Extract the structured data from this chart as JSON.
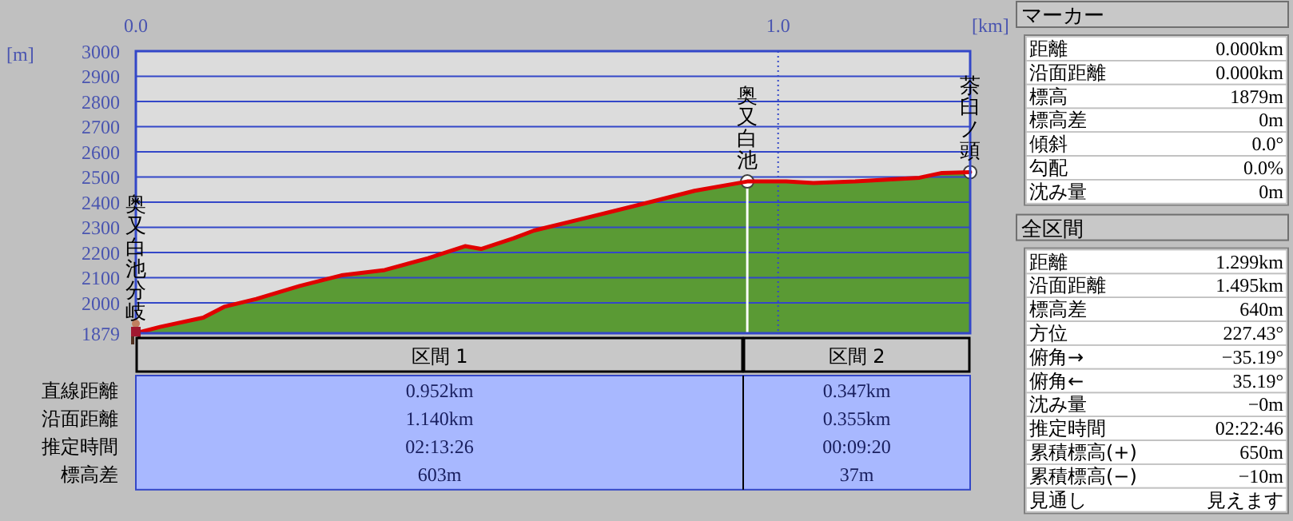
{
  "chart_data": [
    {
      "type": "area",
      "xlabel": "[km]",
      "ylabel": "[m]",
      "xlim": [
        0,
        1.299
      ],
      "xticks": [
        {
          "value": 0,
          "label": "0.0"
        },
        {
          "value": 1,
          "label": "1.0"
        }
      ],
      "ylim": [
        1879,
        3000
      ],
      "yticks": [
        1879,
        2000,
        2100,
        2200,
        2300,
        2400,
        2500,
        2600,
        2700,
        2800,
        2900,
        3000
      ],
      "grid": "y",
      "x": [
        0,
        0.0375,
        0.105,
        0.1375,
        0.1875,
        0.255,
        0.32,
        0.3875,
        0.455,
        0.5125,
        0.5375,
        0.5875,
        0.62,
        0.705,
        0.805,
        0.87,
        0.952,
        1.0125,
        1.055,
        1.12,
        1.22,
        1.255,
        1.299
      ],
      "series": [
        {
          "type": "area",
          "color": "#5a9a34",
          "values": [
            1879,
            1904,
            1941,
            1984,
            2015,
            2067,
            2109,
            2130,
            2177,
            2225,
            2214,
            2256,
            2287,
            2340,
            2403,
            2445,
            2482,
            2482,
            2476,
            2482,
            2497,
            2516,
            2519
          ]
        },
        {
          "type": "scatter",
          "color": "#ffffff",
          "x": [
            0.952,
            1.299
          ],
          "values": [
            2482,
            2519
          ]
        }
      ],
      "ref_lines": [
        {
          "axis": "x",
          "value": 1,
          "color": "#3347c8",
          "line_style": "dotted"
        },
        {
          "axis": "x",
          "value": 0.952,
          "color": "#ffffff"
        }
      ],
      "annotations": [
        {
          "text": "奥又白池分岐",
          "x": 0,
          "y": 1879
        },
        {
          "text": "奥又白池",
          "x": 0.952,
          "y": 2482
        },
        {
          "text": "茶臼ノ頭",
          "x": 1.299,
          "y": 2519
        }
      ]
    },
    {
      "type": "other",
      "categories": [
        "区間 1",
        "区間 2"
      ],
      "y_categories": [
        "直線距離",
        "沿面距離",
        "推定時間",
        "標高差"
      ],
      "cell_labels": [
        [
          "0.952km",
          "0.347km"
        ],
        [
          "1.140km",
          "0.355km"
        ],
        [
          "02:13:26",
          "00:09:20"
        ],
        [
          "603m",
          "37m"
        ]
      ]
    },
    {
      "type": "other",
      "title": "マーカー",
      "y_categories": [
        "距離",
        "沿面距離",
        "標高",
        "標高差",
        "傾斜",
        "勾配",
        "沈み量"
      ],
      "cell_labels": [
        [
          "0.000km"
        ],
        [
          "0.000km"
        ],
        [
          "1879m"
        ],
        [
          "0m"
        ],
        [
          "0.0°"
        ],
        [
          "0.0%"
        ],
        [
          "0m"
        ]
      ]
    },
    {
      "type": "other",
      "title": "全区間",
      "y_categories": [
        "距離",
        "沿面距離",
        "標高差",
        "方位",
        "俯角→",
        "俯角←",
        "沈み量",
        "推定時間",
        "累積標高(+)",
        "累積標高(−)",
        "見通し"
      ],
      "cell_labels": [
        [
          "1.299km"
        ],
        [
          "1.495km"
        ],
        [
          "640m"
        ],
        [
          "227.43°"
        ],
        [
          "−35.19°"
        ],
        [
          "35.19°"
        ],
        [
          "−0m"
        ],
        [
          "02:22:46"
        ],
        [
          "650m"
        ],
        [
          "−10m"
        ],
        [
          "見えます"
        ]
      ]
    }
  ]
}
